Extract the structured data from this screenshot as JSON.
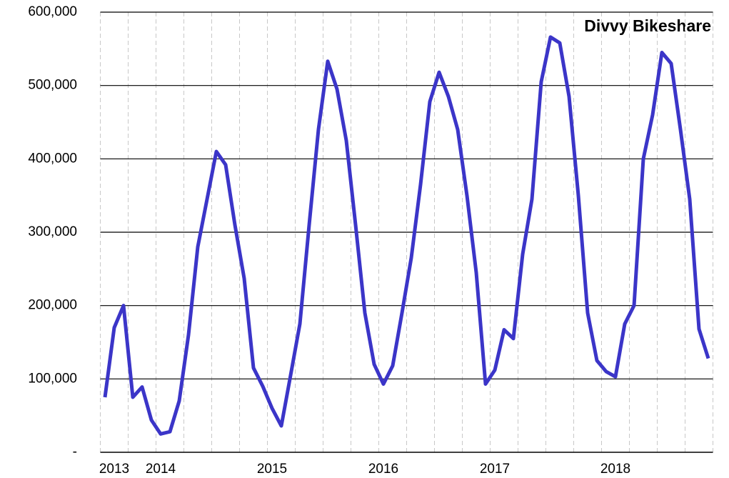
{
  "chart_data": {
    "type": "line",
    "title": "Divvy Bikeshare",
    "categories": [
      null,
      "2013",
      null,
      null,
      null,
      null,
      "2014",
      null,
      null,
      null,
      null,
      null,
      null,
      null,
      null,
      null,
      null,
      null,
      "2015",
      null,
      null,
      null,
      null,
      null,
      null,
      null,
      null,
      null,
      null,
      null,
      "2016",
      null,
      null,
      null,
      null,
      null,
      null,
      null,
      null,
      null,
      null,
      null,
      "2017",
      null,
      null,
      null,
      null,
      null,
      null,
      null,
      null,
      null,
      null,
      null,
      null,
      "2018",
      null,
      null,
      null,
      null,
      null,
      null,
      null,
      null,
      null,
      null
    ],
    "series": [
      {
        "name": "Divvy Bikeshare",
        "color": "#3b35c8",
        "values": [
          75000,
          170000,
          200000,
          75000,
          89000,
          44000,
          25000,
          28000,
          70000,
          160000,
          280000,
          345000,
          410000,
          392000,
          310000,
          237000,
          115000,
          90000,
          60000,
          36000,
          105000,
          175000,
          310000,
          440000,
          533000,
          495000,
          425000,
          310000,
          190000,
          120000,
          93000,
          118000,
          190000,
          265000,
          365000,
          478000,
          518000,
          485000,
          440000,
          350000,
          245000,
          93000,
          112000,
          167000,
          155000,
          270000,
          345000,
          505000,
          566000,
          558000,
          485000,
          350000,
          190000,
          125000,
          110000,
          103000,
          175000,
          200000,
          400000,
          460000,
          545000,
          530000,
          440000,
          345000,
          168000,
          128000
        ]
      }
    ],
    "ylim": [
      0,
      600000
    ],
    "yticks": [
      {
        "value": 0,
        "label": "-"
      },
      {
        "value": 100000,
        "label": "100,000"
      },
      {
        "value": 200000,
        "label": "200,000"
      },
      {
        "value": 300000,
        "label": "300,000"
      },
      {
        "value": 400000,
        "label": "400,000"
      },
      {
        "value": 500000,
        "label": "500,000"
      },
      {
        "value": 600000,
        "label": "600,000"
      }
    ],
    "grid": true
  }
}
